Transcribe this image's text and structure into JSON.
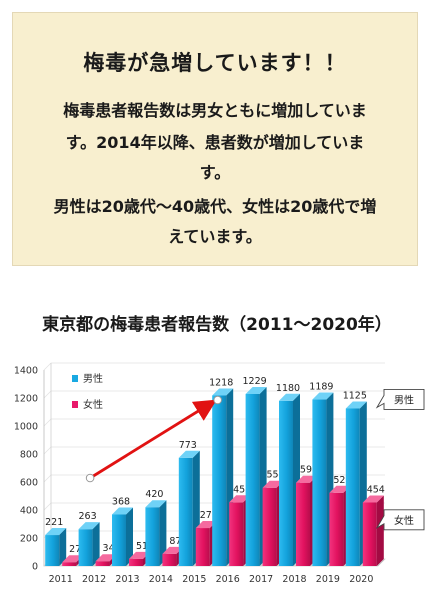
{
  "info": {
    "title": "梅毒が急増しています！！",
    "lines": [
      "梅毒患者報告数は男女ともに増加していま",
      "す。2014年以降、患者数が増加していま",
      "す。",
      "男性は20歳代～40歳代、女性は20歳代で増",
      "えています。"
    ]
  },
  "chart_title": "東京都の梅毒患者報告数（2011～2020年）",
  "chart_data": {
    "type": "bar",
    "title": "東京都の梅毒患者報告数（2011～2020年）",
    "categories": [
      "2011",
      "2012",
      "2013",
      "2014",
      "2015",
      "2016",
      "2017",
      "2018",
      "2019",
      "2020"
    ],
    "series": [
      {
        "name": "男性",
        "color": "#19a9e2",
        "values": [
          221,
          263,
          368,
          420,
          773,
          1218,
          1229,
          1180,
          1189,
          1125
        ]
      },
      {
        "name": "女性",
        "color": "#e8186a",
        "values": [
          27,
          34,
          51,
          87,
          271,
          455,
          559,
          595,
          523,
          454
        ]
      }
    ],
    "ylim": [
      0,
      1400
    ],
    "yticks": [
      0,
      200,
      400,
      600,
      800,
      1000,
      1200,
      1400
    ],
    "legend": "top-left",
    "callouts": [
      "男性",
      "女性"
    ],
    "annotation": "red arrow rising from 2011 to 2015"
  }
}
